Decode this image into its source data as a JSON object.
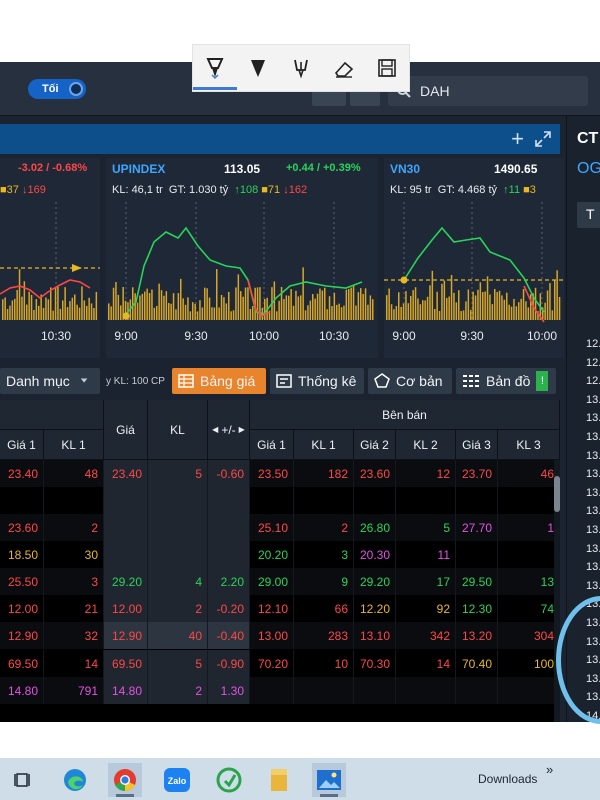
{
  "toolbar": {
    "tools": [
      "pen-tool",
      "highlighter-tool",
      "touch-writing-tool",
      "eraser-tool",
      "save-tool"
    ]
  },
  "topbar": {
    "theme_label": "Tối",
    "search_value": "DAH"
  },
  "indices": [
    {
      "name": "",
      "value": "",
      "change": "-3.02 / -0.68%",
      "stats": "",
      "up": "",
      "ref": "37",
      "down": "169",
      "times": [
        "10:30"
      ]
    },
    {
      "name": "UPINDEX",
      "value": "113.05",
      "change": "+0.44 / +0.39%",
      "kl": "KL: 46,1 tr",
      "gt": "GT: 1.030 tỷ",
      "up": "108",
      "ref": "71",
      "down": "162",
      "times": [
        "9:00",
        "9:30",
        "10:00",
        "10:30"
      ]
    },
    {
      "name": "VN30",
      "value": "1490.65",
      "change": "",
      "kl": "KL: 95 tr",
      "gt": "GT: 4.468 tỷ",
      "up": "11",
      "ref": "3",
      "down": "",
      "times": [
        "9:00",
        "9:30",
        "10:00"
      ]
    }
  ],
  "tabs": {
    "category": "Danh mục",
    "kl_note": "y KL: 100 CP",
    "price_board": "Bảng giá",
    "stats": "Thống kê",
    "basic": "Cơ bản",
    "map": "Bản đồ"
  },
  "table": {
    "header_seller": "Bên bán",
    "cols": [
      "Giá 1",
      "KL 1",
      "Giá",
      "KL",
      "+/-",
      "Giá 1",
      "KL 1",
      "Giá 2",
      "KL 2",
      "Giá 3",
      "KL 3"
    ],
    "rows": [
      [
        [
          "23.40",
          "down"
        ],
        [
          "48",
          "down"
        ],
        [
          "23.40",
          "down"
        ],
        [
          "5",
          "down"
        ],
        [
          "-0.60",
          "down"
        ],
        [
          "23.50",
          "down"
        ],
        [
          "182",
          "down"
        ],
        [
          "23.60",
          "down"
        ],
        [
          "12",
          "down"
        ],
        [
          "23.70",
          "down"
        ],
        [
          "46",
          "down"
        ]
      ],
      [
        [
          "",
          ""
        ],
        [
          "",
          ""
        ],
        [
          "",
          ""
        ],
        [
          "",
          ""
        ],
        [
          "",
          ""
        ],
        [
          "",
          ""
        ],
        [
          "",
          ""
        ],
        [
          "",
          ""
        ],
        [
          "",
          ""
        ],
        [
          "",
          ""
        ],
        [
          "",
          ""
        ]
      ],
      [
        [
          "23.60",
          "down"
        ],
        [
          "2",
          "down"
        ],
        [
          "",
          ""
        ],
        [
          "",
          ""
        ],
        [
          "",
          ""
        ],
        [
          "25.10",
          "down"
        ],
        [
          "2",
          "down"
        ],
        [
          "26.80",
          "up"
        ],
        [
          "5",
          "up"
        ],
        [
          "27.70",
          "ceil"
        ],
        [
          "1",
          "ceil"
        ]
      ],
      [
        [
          "18.50",
          "ref"
        ],
        [
          "30",
          "ref"
        ],
        [
          "",
          ""
        ],
        [
          "",
          ""
        ],
        [
          "",
          ""
        ],
        [
          "20.20",
          "up"
        ],
        [
          "3",
          "up"
        ],
        [
          "20.30",
          "ceil"
        ],
        [
          "11",
          "ceil"
        ],
        [
          "",
          ""
        ],
        [
          "",
          ""
        ]
      ],
      [
        [
          "25.50",
          "down"
        ],
        [
          "3",
          "down"
        ],
        [
          "29.20",
          "up"
        ],
        [
          "4",
          "up"
        ],
        [
          "2.20",
          "up"
        ],
        [
          "29.00",
          "up"
        ],
        [
          "9",
          "up"
        ],
        [
          "29.20",
          "up"
        ],
        [
          "17",
          "up"
        ],
        [
          "29.50",
          "up"
        ],
        [
          "13",
          "up"
        ]
      ],
      [
        [
          "12.00",
          "down"
        ],
        [
          "21",
          "down"
        ],
        [
          "12.00",
          "down"
        ],
        [
          "2",
          "down"
        ],
        [
          "-0.20",
          "down"
        ],
        [
          "12.10",
          "down"
        ],
        [
          "66",
          "down"
        ],
        [
          "12.20",
          "ref"
        ],
        [
          "92",
          "ref"
        ],
        [
          "12.30",
          "up"
        ],
        [
          "74",
          "up"
        ]
      ],
      [
        [
          "12.90",
          "down"
        ],
        [
          "32",
          "down"
        ],
        [
          "12.90",
          "down"
        ],
        [
          "40",
          "down"
        ],
        [
          "-0.40",
          "down"
        ],
        [
          "13.00",
          "down"
        ],
        [
          "283",
          "down"
        ],
        [
          "13.10",
          "down"
        ],
        [
          "342",
          "down"
        ],
        [
          "13.20",
          "down"
        ],
        [
          "304",
          "down"
        ]
      ],
      [
        [
          "69.50",
          "down"
        ],
        [
          "14",
          "down"
        ],
        [
          "69.50",
          "down"
        ],
        [
          "5",
          "down"
        ],
        [
          "-0.90",
          "down"
        ],
        [
          "70.20",
          "down"
        ],
        [
          "10",
          "down"
        ],
        [
          "70.30",
          "down"
        ],
        [
          "14",
          "down"
        ],
        [
          "70.40",
          "ref"
        ],
        [
          "100",
          "ref"
        ]
      ],
      [
        [
          "14.80",
          "ceil"
        ],
        [
          "791",
          "ceil"
        ],
        [
          "14.80",
          "ceil"
        ],
        [
          "2",
          "ceil"
        ],
        [
          "1.30",
          "ceil"
        ],
        [
          "",
          ""
        ],
        [
          "",
          ""
        ],
        [
          "",
          ""
        ],
        [
          "",
          ""
        ],
        [
          "",
          ""
        ],
        [
          "",
          ""
        ]
      ]
    ]
  },
  "right_panel": {
    "title": "CT",
    "code": "OG",
    "tab": "T",
    "prices": [
      "12.",
      "12.",
      "12.",
      "13.",
      "13.",
      "13.",
      "13.",
      "13.",
      "13.",
      "13.",
      "13.",
      "13.",
      "13.",
      "13.",
      "13.",
      "13.",
      "13.",
      "13.",
      "13.",
      "13.",
      "14."
    ]
  },
  "taskbar": {
    "downloads_label": "Downloads",
    "chevron": "»"
  },
  "colors": {
    "up": "#2bd35a",
    "down": "#ff4747",
    "ref": "#e8b923",
    "ceil": "#e552e5",
    "accent": "#e8842b"
  }
}
